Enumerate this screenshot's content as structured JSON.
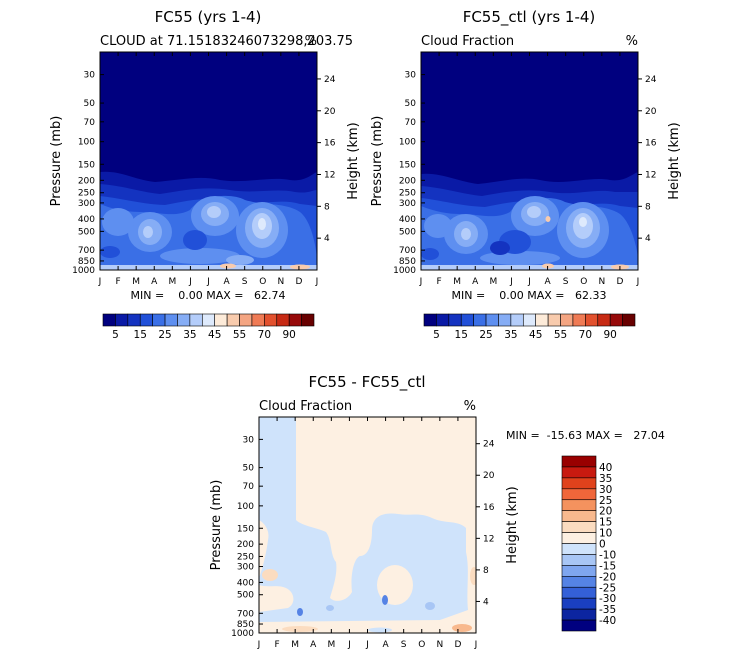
{
  "chart_data": [
    {
      "type": "heatmap",
      "title": "FC55 (yrs 1-4)",
      "subtitle_left": "CLOUD at 71.15183246073298,203.75",
      "subtitle_right": "%",
      "xlabel": "",
      "ylabel": "Pressure (mb)",
      "ylabel_right": "Height (km)",
      "x_ticks": [
        "J",
        "F",
        "M",
        "A",
        "M",
        "J",
        "J",
        "A",
        "S",
        "O",
        "N",
        "D",
        "J"
      ],
      "y_ticks": [
        "30",
        "50",
        "70",
        "100",
        "150",
        "200",
        "250",
        "300",
        "400",
        "500",
        "700",
        "850",
        "1000"
      ],
      "y_ticks_right": [
        "24",
        "20",
        "16",
        "12",
        "8",
        "4"
      ],
      "stats": "MIN =    0.00 MAX =   62.74",
      "stats_min": 0.0,
      "stats_max": 62.74,
      "colorbar": {
        "orientation": "horizontal",
        "labels": [
          "5",
          "15",
          "25",
          "35",
          "45",
          "55",
          "70",
          "90"
        ],
        "colors": [
          "#00007f",
          "#0a1aa6",
          "#1433c0",
          "#2150d8",
          "#3a6fe6",
          "#5e8ff0",
          "#86adf5",
          "#b4cdfa",
          "#deeafc",
          "#fdebd9",
          "#f8cbad",
          "#f4a582",
          "#ef7b55",
          "#e2512e",
          "#c72a14",
          "#970a0a",
          "#680000"
        ]
      }
    },
    {
      "type": "heatmap",
      "title": "FC55_ctl (yrs 1-4)",
      "subtitle_left": "Cloud Fraction",
      "subtitle_right": "%",
      "xlabel": "",
      "ylabel": "Pressure (mb)",
      "ylabel_right": "Height (km)",
      "x_ticks": [
        "J",
        "F",
        "M",
        "A",
        "M",
        "J",
        "J",
        "A",
        "S",
        "O",
        "N",
        "D",
        "J"
      ],
      "y_ticks": [
        "30",
        "50",
        "70",
        "100",
        "150",
        "200",
        "250",
        "300",
        "400",
        "500",
        "700",
        "850",
        "1000"
      ],
      "y_ticks_right": [
        "24",
        "20",
        "16",
        "12",
        "8",
        "4"
      ],
      "stats": "MIN =    0.00 MAX =   62.33",
      "stats_min": 0.0,
      "stats_max": 62.33,
      "colorbar": {
        "orientation": "horizontal",
        "labels": [
          "5",
          "15",
          "25",
          "35",
          "45",
          "55",
          "70",
          "90"
        ],
        "colors": [
          "#00007f",
          "#0a1aa6",
          "#1433c0",
          "#2150d8",
          "#3a6fe6",
          "#5e8ff0",
          "#86adf5",
          "#b4cdfa",
          "#deeafc",
          "#fdebd9",
          "#f8cbad",
          "#f4a582",
          "#ef7b55",
          "#e2512e",
          "#c72a14",
          "#970a0a",
          "#680000"
        ]
      }
    },
    {
      "type": "heatmap",
      "title": "FC55 - FC55_ctl",
      "subtitle_left": "Cloud Fraction",
      "subtitle_right": "%",
      "xlabel": "",
      "ylabel": "Pressure (mb)",
      "ylabel_right": "Height (km)",
      "x_ticks": [
        "J",
        "F",
        "M",
        "A",
        "M",
        "J",
        "J",
        "A",
        "S",
        "O",
        "N",
        "D",
        "J"
      ],
      "y_ticks": [
        "30",
        "50",
        "70",
        "100",
        "150",
        "200",
        "250",
        "300",
        "400",
        "500",
        "700",
        "850",
        "1000"
      ],
      "y_ticks_right": [
        "24",
        "20",
        "16",
        "12",
        "8",
        "4"
      ],
      "stats": "MIN =  -15.63 MAX =   27.04",
      "stats_min": -15.63,
      "stats_max": 27.04,
      "colorbar": {
        "orientation": "vertical",
        "labels": [
          "40",
          "35",
          "30",
          "25",
          "20",
          "15",
          "10",
          "0",
          "-10",
          "-15",
          "-20",
          "-25",
          "-30",
          "-35",
          "-40"
        ],
        "colors": [
          "#990000",
          "#c81a10",
          "#e0421c",
          "#f0663a",
          "#f4925e",
          "#f8b98e",
          "#fbdcc0",
          "#fdf0e2",
          "#cfe3fb",
          "#a8c6f5",
          "#7fa6ef",
          "#5583e5",
          "#3460d8",
          "#1a3fc0",
          "#0c25a0",
          "#000080"
        ]
      }
    }
  ]
}
